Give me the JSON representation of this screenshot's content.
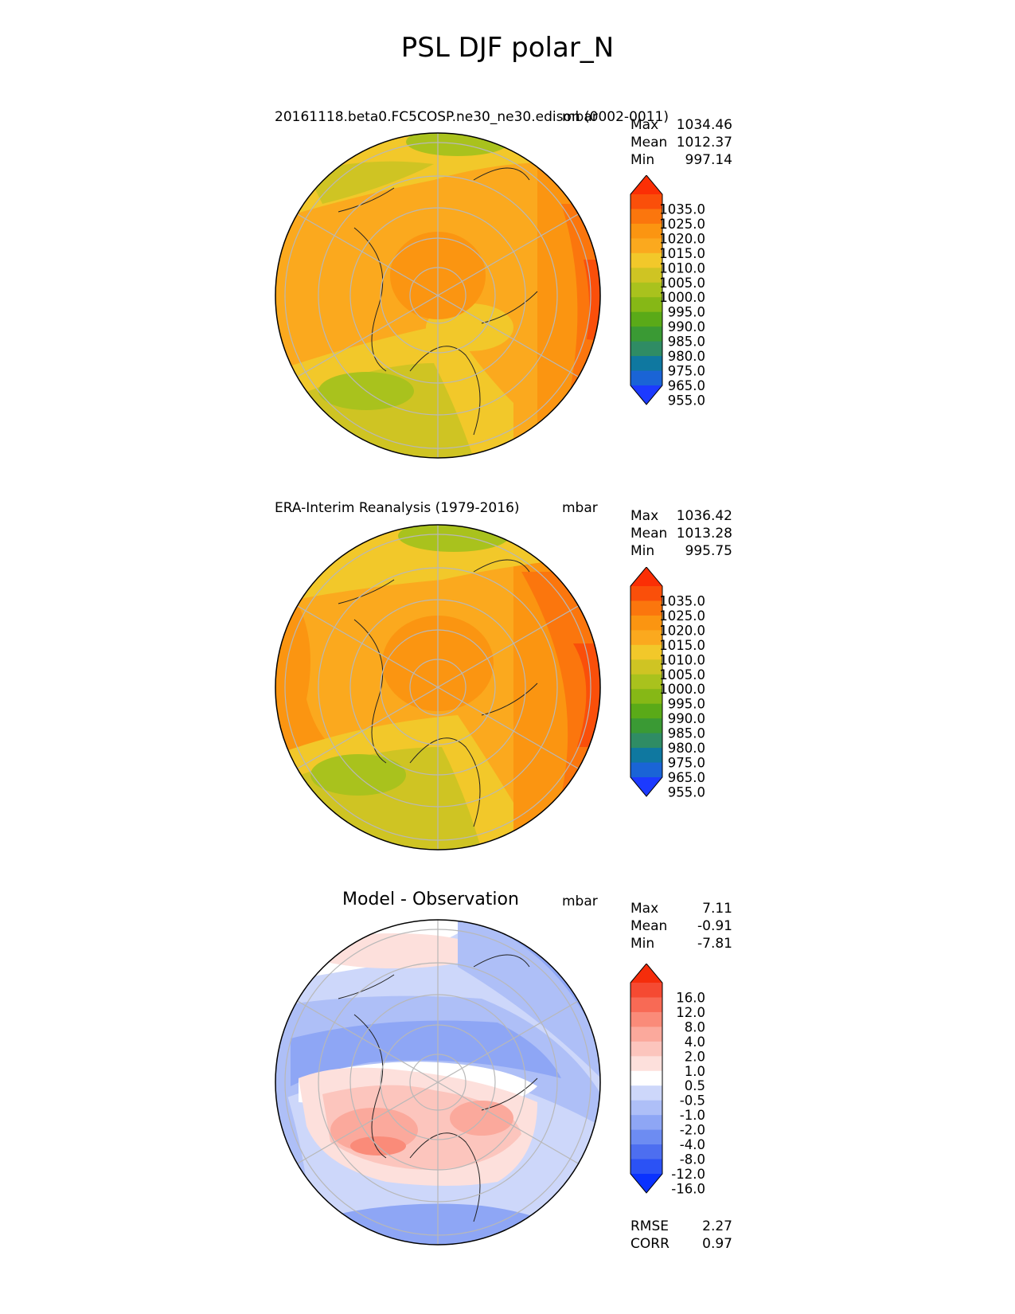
{
  "title": "PSL DJF polar_N",
  "panels": [
    {
      "title": "20161118.beta0.FC5COSP.ne30_ne30.edison (0002-0011)",
      "units": "mbar",
      "stats": [
        {
          "label": "Max",
          "value": "1034.46"
        },
        {
          "label": "Mean",
          "value": "1012.37"
        },
        {
          "label": "Min",
          "value": "997.14"
        }
      ],
      "colorbar_levels": [
        "1035.0",
        "1025.0",
        "1020.0",
        "1015.0",
        "1010.0",
        "1005.0",
        "1000.0",
        "995.0",
        "990.0",
        "985.0",
        "980.0",
        "975.0",
        "965.0",
        "955.0"
      ]
    },
    {
      "title": "ERA-Interim Reanalysis (1979-2016)",
      "units": "mbar",
      "stats": [
        {
          "label": "Max",
          "value": "1036.42"
        },
        {
          "label": "Mean",
          "value": "1013.28"
        },
        {
          "label": "Min",
          "value": "995.75"
        }
      ],
      "colorbar_levels": [
        "1035.0",
        "1025.0",
        "1020.0",
        "1015.0",
        "1010.0",
        "1005.0",
        "1000.0",
        "995.0",
        "990.0",
        "985.0",
        "980.0",
        "975.0",
        "965.0",
        "955.0"
      ]
    },
    {
      "title": "Model - Observation",
      "units": "mbar",
      "stats": [
        {
          "label": "Max",
          "value": "7.11"
        },
        {
          "label": "Mean",
          "value": "-0.91"
        },
        {
          "label": "Min",
          "value": "-7.81"
        }
      ],
      "colorbar_levels": [
        "16.0",
        "12.0",
        "8.0",
        "4.0",
        "2.0",
        "1.0",
        "0.5",
        "-0.5",
        "-1.0",
        "-2.0",
        "-4.0",
        "-8.0",
        "-12.0",
        "-16.0"
      ],
      "metrics": [
        {
          "label": "RMSE",
          "value": "2.27"
        },
        {
          "label": "CORR",
          "value": "0.97"
        }
      ]
    }
  ],
  "chart_data": [
    {
      "type": "heatmap",
      "projection": "north polar stereographic",
      "title": "20161118.beta0.FC5COSP.ne30_ne30.edison (0002-0011)",
      "variable": "PSL",
      "season": "DJF",
      "units": "mbar",
      "max": 1034.46,
      "mean": 1012.37,
      "min": 997.14,
      "levels": [
        955,
        965,
        975,
        980,
        985,
        990,
        995,
        1000,
        1005,
        1010,
        1015,
        1020,
        1025,
        1035
      ],
      "level_colors": [
        "#1c3aff",
        "#1a64d6",
        "#0f78a0",
        "#2f8c64",
        "#3a9a34",
        "#5aaa18",
        "#86b816",
        "#a9c21d",
        "#cfc423",
        "#f2c82a",
        "#fba91e",
        "#fb9511",
        "#fb760d",
        "#fa4f0a",
        "#fb2f05"
      ]
    },
    {
      "type": "heatmap",
      "projection": "north polar stereographic",
      "title": "ERA-Interim Reanalysis (1979-2016)",
      "variable": "PSL",
      "season": "DJF",
      "units": "mbar",
      "max": 1036.42,
      "mean": 1013.28,
      "min": 995.75,
      "levels": [
        955,
        965,
        975,
        980,
        985,
        990,
        995,
        1000,
        1005,
        1010,
        1015,
        1020,
        1025,
        1035
      ],
      "level_colors": [
        "#1c3aff",
        "#1a64d6",
        "#0f78a0",
        "#2f8c64",
        "#3a9a34",
        "#5aaa18",
        "#86b816",
        "#a9c21d",
        "#cfc423",
        "#f2c82a",
        "#fba91e",
        "#fb9511",
        "#fb760d",
        "#fa4f0a",
        "#fb2f05"
      ]
    },
    {
      "type": "heatmap",
      "projection": "north polar stereographic",
      "title": "Model - Observation",
      "variable": "PSL",
      "season": "DJF",
      "units": "mbar",
      "max": 7.11,
      "mean": -0.91,
      "min": -7.81,
      "rmse": 2.27,
      "corr": 0.97,
      "levels": [
        -16,
        -12,
        -8,
        -4,
        -2,
        -1,
        -0.5,
        0.5,
        1,
        2,
        4,
        8,
        12,
        16
      ],
      "level_colors": [
        "#0a32ff",
        "#2b52f5",
        "#4d6ef0",
        "#6d8cf2",
        "#8ea6f5",
        "#aebff7",
        "#cdd7fa",
        "#ffffff",
        "#fde0dc",
        "#fcc5bd",
        "#fba99c",
        "#fa8b79",
        "#f86a55",
        "#f54a32",
        "#f52d0b"
      ]
    }
  ]
}
